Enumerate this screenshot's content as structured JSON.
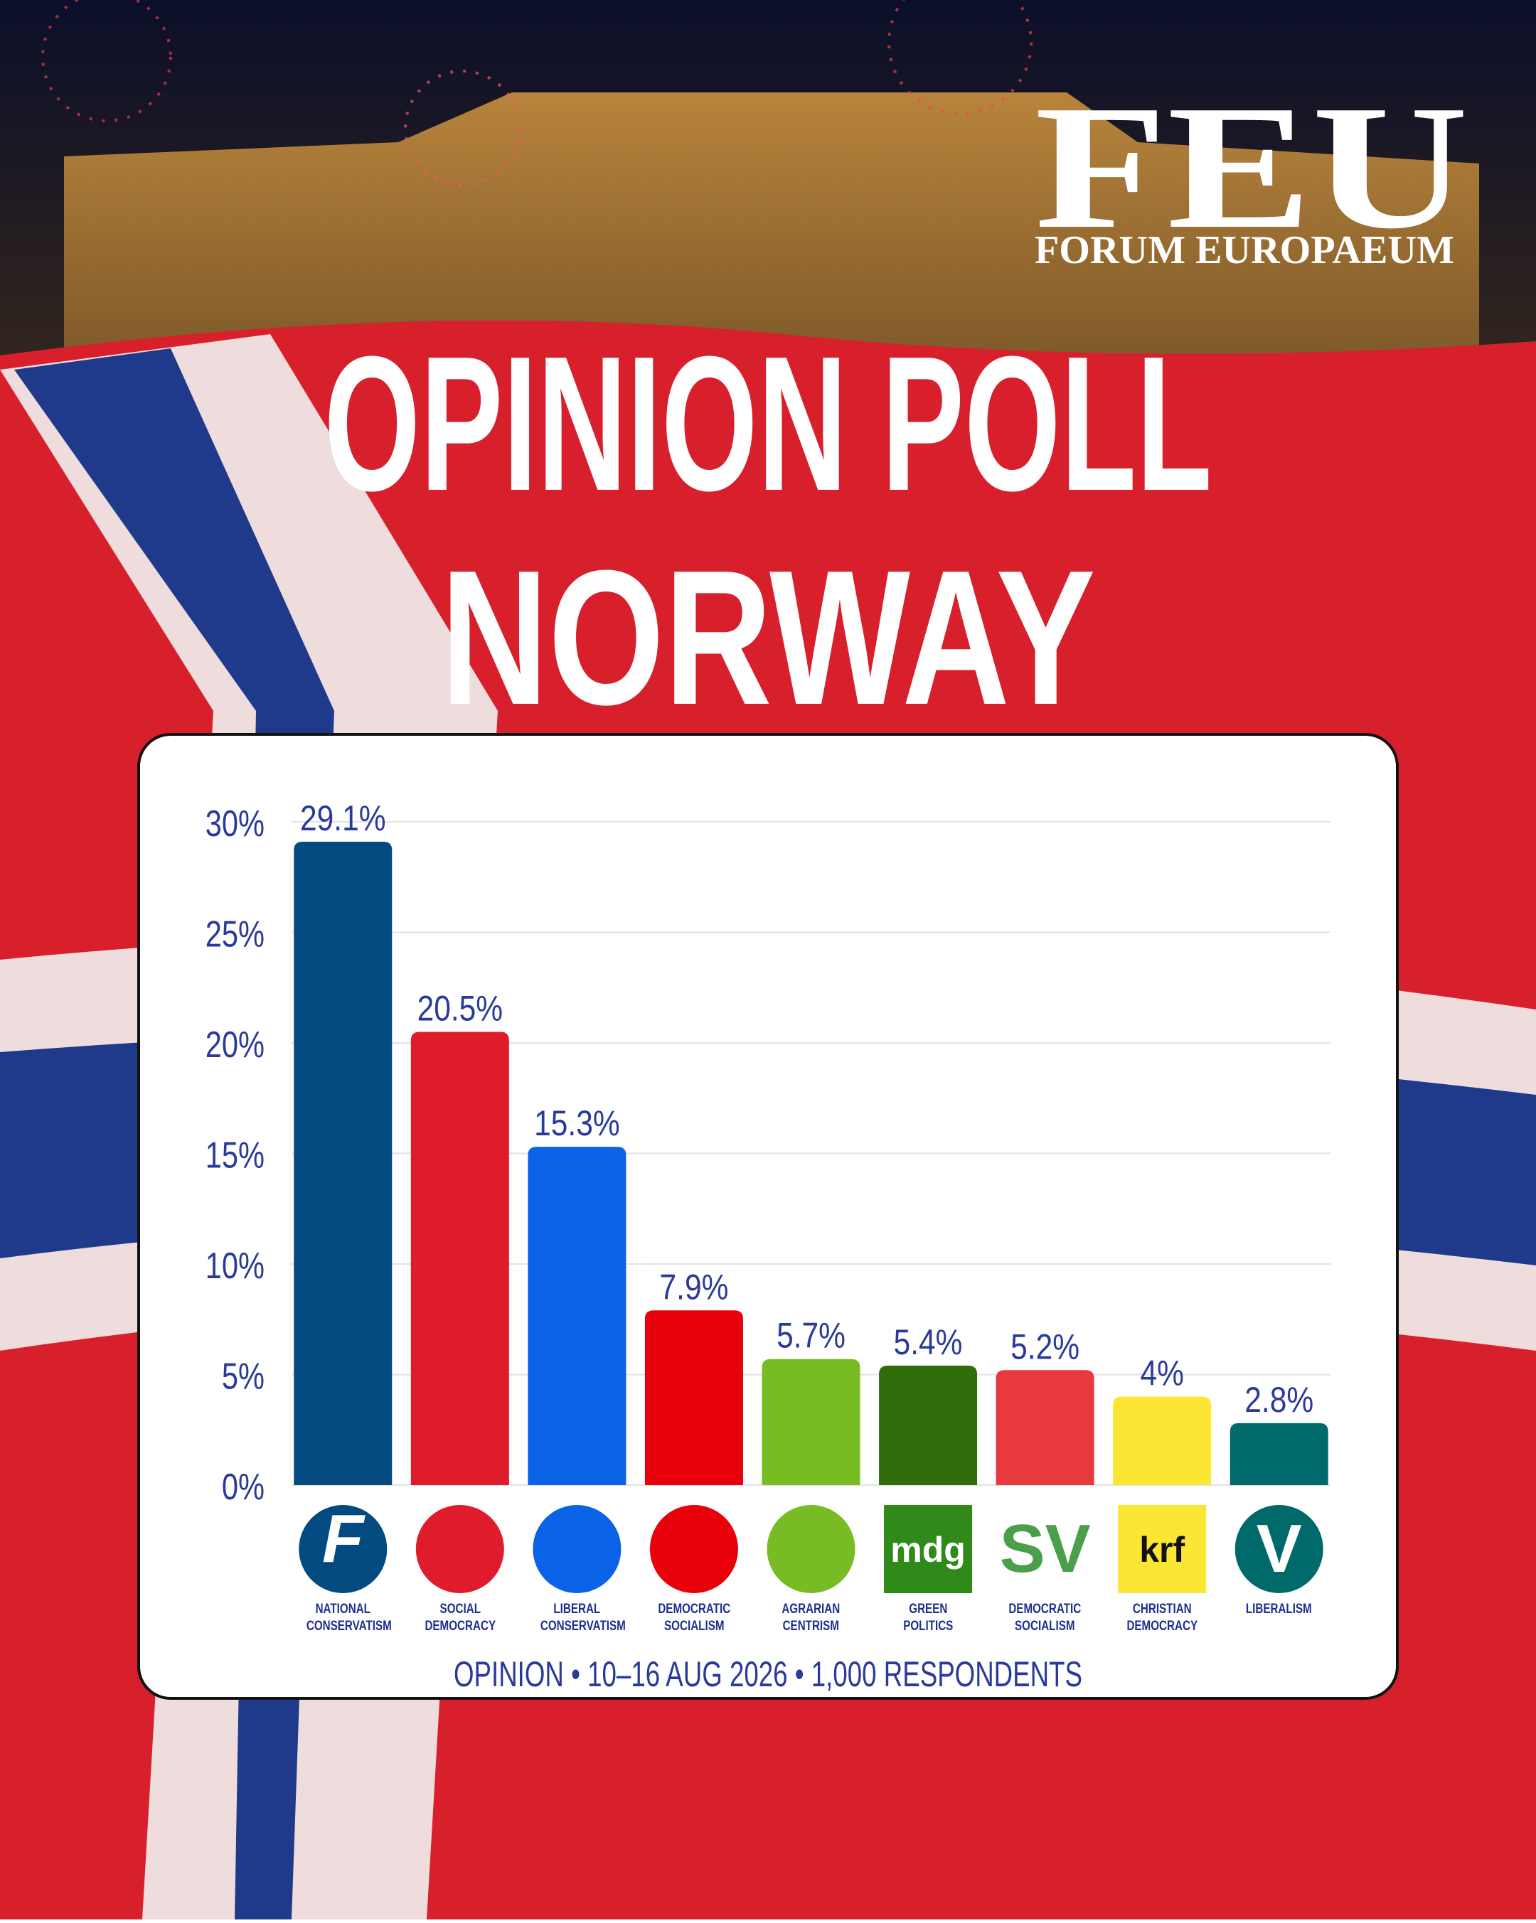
{
  "brand": {
    "name": "FEU",
    "subtitle": "FORUM EUROPAEUM"
  },
  "chart_data": {
    "type": "bar",
    "title": [
      "OPINION POLL",
      "NORWAY"
    ],
    "categories": [
      "NATIONAL CONSERVATISM",
      "SOCIAL DEMOCRACY",
      "LIBERAL CONSERVATISM",
      "DEMOCRATIC SOCIALISM",
      "AGRARIAN CENTRISM",
      "GREEN POLITICS",
      "DEMOCRATIC SOCIALISM",
      "CHRISTIAN DEMOCRACY",
      "LIBERALISM"
    ],
    "values": [
      29.1,
      20.5,
      15.3,
      7.9,
      5.7,
      5.4,
      5.2,
      4,
      2.8
    ],
    "value_labels": [
      "29.1%",
      "20.5%",
      "15.3%",
      "7.9%",
      "5.7%",
      "5.4%",
      "5.2%",
      "4%",
      "2.8%"
    ],
    "colors": [
      "#034a80",
      "#e01b2c",
      "#0a63e6",
      "#e8000b",
      "#78bc23",
      "#2f6e0a",
      "#e8393f",
      "#fbe634",
      "#006a6b"
    ],
    "logos": [
      "F",
      null,
      null,
      null,
      null,
      "mdg",
      "SV",
      "krf",
      "V"
    ],
    "ylim": [
      0,
      30
    ],
    "yticks": [
      {
        "value": 0,
        "label": "0%"
      },
      {
        "value": 5,
        "label": "5%"
      },
      {
        "value": 10,
        "label": "10%"
      },
      {
        "value": 15,
        "label": "15%"
      },
      {
        "value": 20,
        "label": "20%"
      },
      {
        "value": 25,
        "label": "25%"
      },
      {
        "value": 30,
        "label": "30%"
      }
    ],
    "grid": true,
    "footer": "OPINION • 10–16 AUG 2026 • 1,000 RESPONDENTS"
  }
}
